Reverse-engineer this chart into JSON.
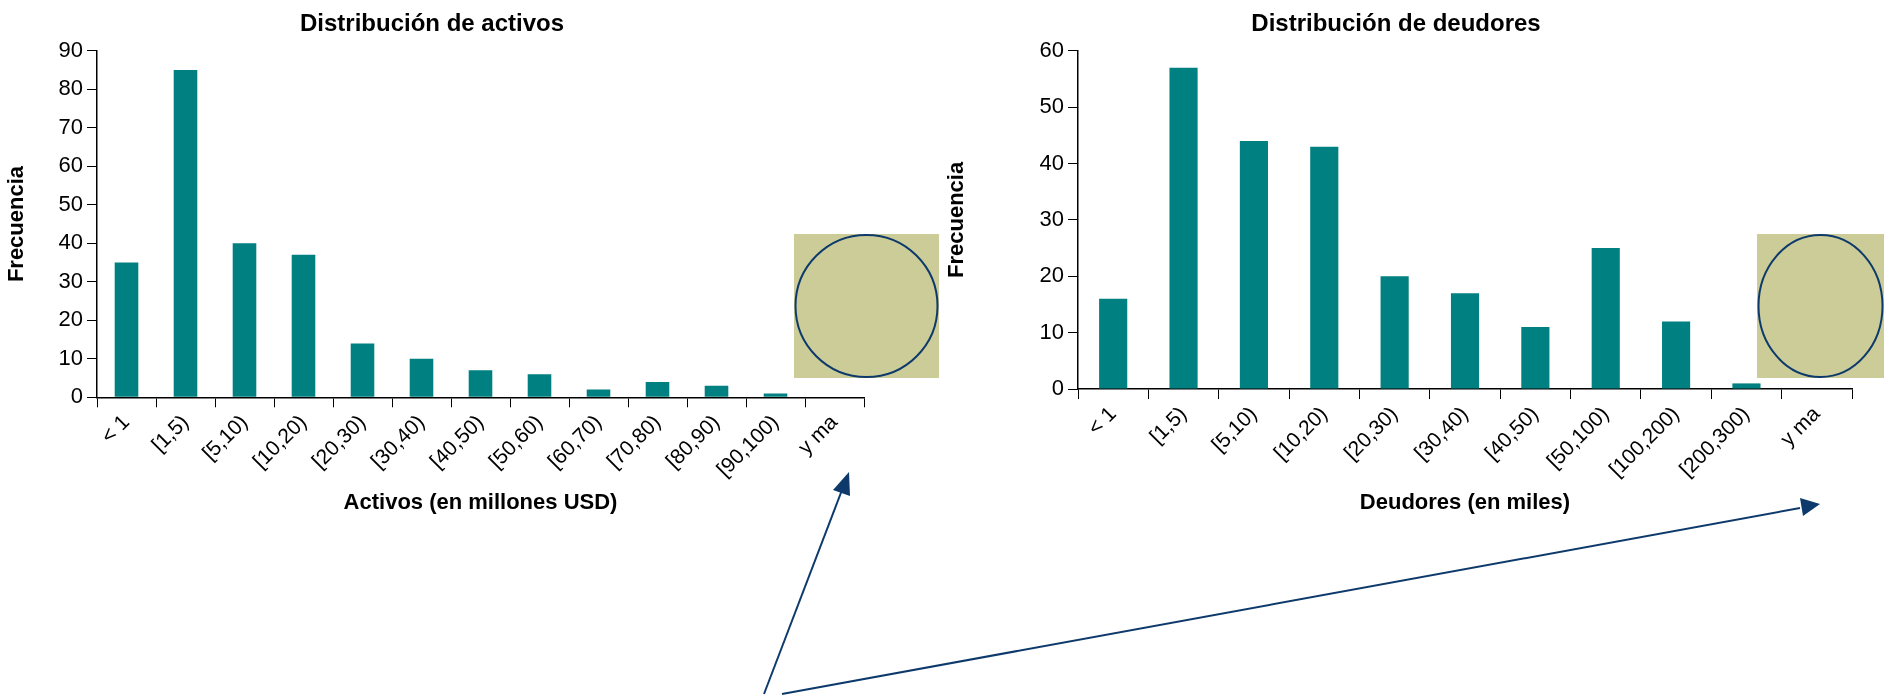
{
  "chart_data": [
    {
      "type": "bar",
      "title": "Distribución de activos",
      "xlabel": "Activos (en millones USD)",
      "ylabel": "Frecuencia",
      "categories": [
        "< 1",
        "[1,5)",
        "[5,10)",
        "[10,20)",
        "[20,30)",
        "[30,40)",
        "[40,50)",
        "[50,60)",
        "[60,70)",
        "[70,80)",
        "[80,90)",
        "[90,100)",
        "y ma"
      ],
      "values": [
        35,
        85,
        40,
        37,
        14,
        10,
        7,
        6,
        2,
        4,
        3,
        1,
        null
      ],
      "color": "#008080",
      "ylim": [
        0,
        90
      ],
      "yticks": [
        0,
        10,
        20,
        30,
        40,
        50,
        60,
        70,
        80,
        90
      ],
      "grid": false,
      "legend": false
    },
    {
      "type": "bar",
      "title": "Distribución de deudores",
      "xlabel": "Deudores (en miles)",
      "ylabel": "Frecuencia",
      "categories": [
        "< 1",
        "[1,5)",
        "[5,10)",
        "[10,20)",
        "[20,30)",
        "[30,40)",
        "[40,50)",
        "[50,100)",
        "[100,200)",
        "[200,300)",
        "y ma"
      ],
      "values": [
        16,
        57,
        44,
        43,
        20,
        17,
        11,
        25,
        12,
        1,
        null
      ],
      "color": "#008080",
      "ylim": [
        0,
        60
      ],
      "yticks": [
        0,
        10,
        20,
        30,
        40,
        50,
        60
      ],
      "grid": false,
      "legend": false
    }
  ]
}
